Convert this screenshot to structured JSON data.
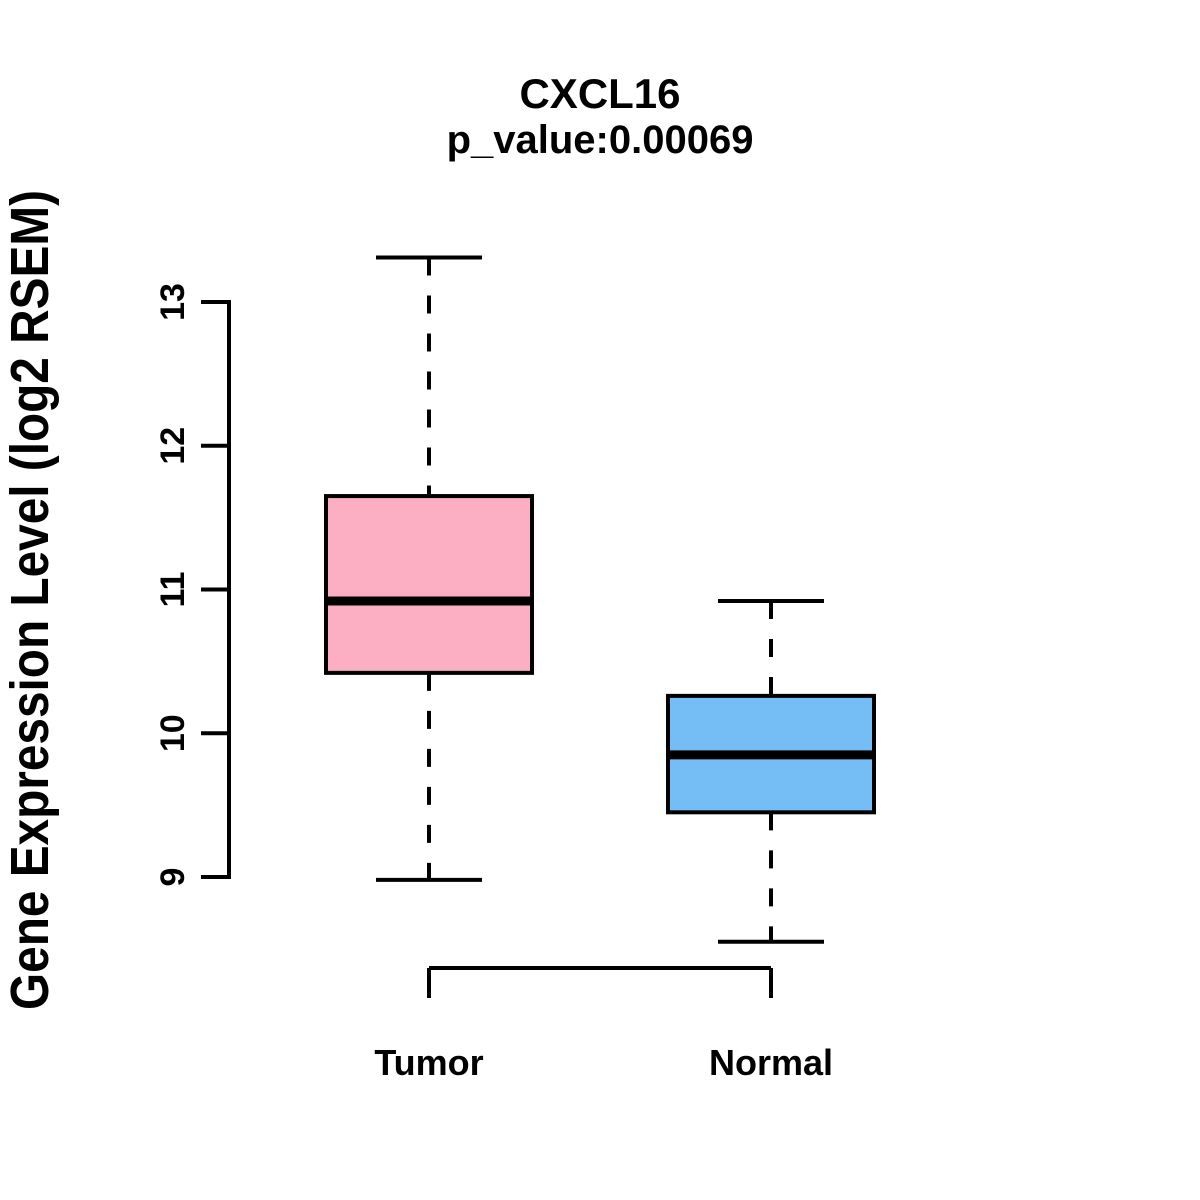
{
  "chart_data": {
    "type": "boxplot",
    "title": "CXCL16",
    "subtitle": "p_value:0.00069",
    "ylabel": "Gene Expression Level (log2 RSEM)",
    "xlabel": "",
    "categories": [
      "Tumor",
      "Normal"
    ],
    "yticks": [
      9,
      10,
      11,
      12,
      13
    ],
    "ylim": [
      8.35,
      13.45
    ],
    "grid": false,
    "legend_position": "none",
    "background_color": "#FFFFFF",
    "axis_color": "#000000",
    "series": [
      {
        "name": "Tumor",
        "box_color": "#FCAEC2",
        "border_color": "#000000",
        "median_color": "#000000",
        "whisker_low": 8.98,
        "q1": 10.42,
        "median": 10.92,
        "q3": 11.65,
        "whisker_high": 13.31
      },
      {
        "name": "Normal",
        "box_color": "#74BEF5",
        "border_color": "#000000",
        "median_color": "#000000",
        "whisker_low": 8.55,
        "q1": 9.45,
        "median": 9.85,
        "q3": 10.26,
        "whisker_high": 10.92
      }
    ]
  }
}
